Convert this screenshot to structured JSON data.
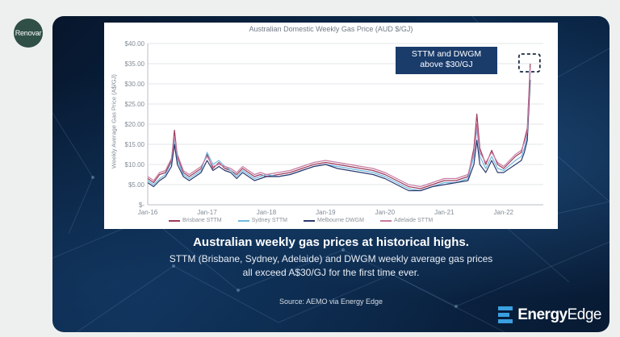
{
  "avatar": {
    "label": "Renovar"
  },
  "post": {
    "headline": "Australian weekly gas prices at historical highs.",
    "subtext_line1": "STTM (Brisbane, Sydney, Adelaide) and DWGM weekly average gas prices",
    "subtext_line2": "all exceed A$30/GJ for the first time ever.",
    "source": "Source: AEMO via Energy Edge",
    "logo": {
      "word_bold": "Energy",
      "word_light": "Edge",
      "color": "#3aa0e0"
    }
  },
  "callout": {
    "line1": "STTM and DWGM",
    "line2": "above $30/GJ"
  },
  "chart_data": {
    "type": "line",
    "title": "Australian Domestic Weekly Gas Price (AUD $/GJ)",
    "ylabel": "Weekly Average Gas Price (A$/GJ)",
    "ylim": [
      0,
      40
    ],
    "yticks": [
      "$-",
      "$5.00",
      "$10.00",
      "$15.00",
      "$20.00",
      "$25.00",
      "$30.00",
      "$35.00",
      "$40.00"
    ],
    "xlim": [
      2016.0,
      2022.67
    ],
    "xticks": [
      {
        "label": "Jan-16",
        "x": 2016
      },
      {
        "label": "Jan-17",
        "x": 2017
      },
      {
        "label": "Jan-18",
        "x": 2018
      },
      {
        "label": "Jan-19",
        "x": 2019
      },
      {
        "label": "Jan-20",
        "x": 2020
      },
      {
        "label": "Jan-21",
        "x": 2021
      },
      {
        "label": "Jan-22",
        "x": 2022
      }
    ],
    "grid": true,
    "legend": "bottom",
    "series": [
      {
        "name": "Brisbane STTM",
        "color": "#9b3a5a",
        "points": [
          [
            2016.0,
            6.5
          ],
          [
            2016.1,
            5.5
          ],
          [
            2016.2,
            7.5
          ],
          [
            2016.3,
            8.0
          ],
          [
            2016.4,
            11.0
          ],
          [
            2016.45,
            18.5
          ],
          [
            2016.5,
            12.0
          ],
          [
            2016.6,
            8.0
          ],
          [
            2016.7,
            7.0
          ],
          [
            2016.8,
            8.0
          ],
          [
            2016.9,
            9.0
          ],
          [
            2017.0,
            12.5
          ],
          [
            2017.1,
            9.0
          ],
          [
            2017.2,
            10.5
          ],
          [
            2017.3,
            9.0
          ],
          [
            2017.4,
            8.5
          ],
          [
            2017.5,
            7.5
          ],
          [
            2017.6,
            9.0
          ],
          [
            2017.7,
            8.0
          ],
          [
            2017.8,
            7.0
          ],
          [
            2017.9,
            7.5
          ],
          [
            2018.0,
            7.0
          ],
          [
            2018.2,
            7.5
          ],
          [
            2018.4,
            8.0
          ],
          [
            2018.6,
            9.0
          ],
          [
            2018.8,
            10.0
          ],
          [
            2019.0,
            10.5
          ],
          [
            2019.2,
            10.0
          ],
          [
            2019.4,
            9.5
          ],
          [
            2019.6,
            9.0
          ],
          [
            2019.8,
            8.5
          ],
          [
            2020.0,
            7.5
          ],
          [
            2020.2,
            6.0
          ],
          [
            2020.4,
            4.5
          ],
          [
            2020.6,
            4.0
          ],
          [
            2020.8,
            5.0
          ],
          [
            2021.0,
            6.0
          ],
          [
            2021.2,
            6.0
          ],
          [
            2021.4,
            7.0
          ],
          [
            2021.5,
            14.0
          ],
          [
            2021.55,
            22.5
          ],
          [
            2021.6,
            14.0
          ],
          [
            2021.7,
            10.0
          ],
          [
            2021.8,
            13.5
          ],
          [
            2021.9,
            10.0
          ],
          [
            2022.0,
            9.0
          ],
          [
            2022.2,
            12.0
          ],
          [
            2022.3,
            13.0
          ],
          [
            2022.35,
            16.0
          ],
          [
            2022.4,
            19.0
          ],
          [
            2022.45,
            35.0
          ]
        ]
      },
      {
        "name": "Sydney STTM",
        "color": "#6fb8e0",
        "points": [
          [
            2016.0,
            6.0
          ],
          [
            2016.1,
            5.0
          ],
          [
            2016.2,
            6.5
          ],
          [
            2016.3,
            7.5
          ],
          [
            2016.4,
            10.5
          ],
          [
            2016.45,
            16.5
          ],
          [
            2016.5,
            11.0
          ],
          [
            2016.6,
            7.5
          ],
          [
            2016.7,
            6.5
          ],
          [
            2016.8,
            7.5
          ],
          [
            2016.9,
            8.5
          ],
          [
            2017.0,
            13.0
          ],
          [
            2017.1,
            10.0
          ],
          [
            2017.2,
            11.0
          ],
          [
            2017.3,
            9.5
          ],
          [
            2017.4,
            8.5
          ],
          [
            2017.5,
            7.0
          ],
          [
            2017.6,
            8.5
          ],
          [
            2017.7,
            7.5
          ],
          [
            2017.8,
            6.5
          ],
          [
            2017.9,
            7.0
          ],
          [
            2018.0,
            7.5
          ],
          [
            2018.2,
            7.0
          ],
          [
            2018.4,
            7.5
          ],
          [
            2018.6,
            8.5
          ],
          [
            2018.8,
            9.5
          ],
          [
            2019.0,
            10.0
          ],
          [
            2019.2,
            9.5
          ],
          [
            2019.4,
            9.0
          ],
          [
            2019.6,
            8.5
          ],
          [
            2019.8,
            8.0
          ],
          [
            2020.0,
            7.0
          ],
          [
            2020.2,
            5.5
          ],
          [
            2020.4,
            4.0
          ],
          [
            2020.6,
            3.5
          ],
          [
            2020.8,
            4.5
          ],
          [
            2021.0,
            5.5
          ],
          [
            2021.2,
            5.5
          ],
          [
            2021.4,
            6.5
          ],
          [
            2021.5,
            12.0
          ],
          [
            2021.55,
            19.0
          ],
          [
            2021.6,
            12.0
          ],
          [
            2021.7,
            9.0
          ],
          [
            2021.8,
            12.0
          ],
          [
            2021.9,
            9.0
          ],
          [
            2022.0,
            8.5
          ],
          [
            2022.2,
            11.0
          ],
          [
            2022.3,
            12.0
          ],
          [
            2022.35,
            14.0
          ],
          [
            2022.4,
            17.0
          ],
          [
            2022.45,
            33.0
          ]
        ]
      },
      {
        "name": "Melbourne DWGM",
        "color": "#2a3a6e",
        "points": [
          [
            2016.0,
            5.5
          ],
          [
            2016.1,
            4.5
          ],
          [
            2016.2,
            6.0
          ],
          [
            2016.3,
            7.0
          ],
          [
            2016.4,
            9.5
          ],
          [
            2016.45,
            15.0
          ],
          [
            2016.5,
            10.0
          ],
          [
            2016.6,
            7.0
          ],
          [
            2016.7,
            6.0
          ],
          [
            2016.8,
            7.0
          ],
          [
            2016.9,
            8.0
          ],
          [
            2017.0,
            11.0
          ],
          [
            2017.1,
            8.5
          ],
          [
            2017.2,
            9.5
          ],
          [
            2017.3,
            8.5
          ],
          [
            2017.4,
            8.0
          ],
          [
            2017.5,
            6.5
          ],
          [
            2017.6,
            8.0
          ],
          [
            2017.7,
            7.0
          ],
          [
            2017.8,
            6.0
          ],
          [
            2017.9,
            6.5
          ],
          [
            2018.0,
            7.0
          ],
          [
            2018.2,
            7.0
          ],
          [
            2018.4,
            7.5
          ],
          [
            2018.6,
            8.5
          ],
          [
            2018.8,
            9.5
          ],
          [
            2019.0,
            10.0
          ],
          [
            2019.2,
            9.0
          ],
          [
            2019.4,
            8.5
          ],
          [
            2019.6,
            8.0
          ],
          [
            2019.8,
            7.5
          ],
          [
            2020.0,
            6.5
          ],
          [
            2020.2,
            5.0
          ],
          [
            2020.4,
            3.5
          ],
          [
            2020.6,
            3.5
          ],
          [
            2020.8,
            4.5
          ],
          [
            2021.0,
            5.0
          ],
          [
            2021.2,
            5.5
          ],
          [
            2021.4,
            6.0
          ],
          [
            2021.5,
            10.0
          ],
          [
            2021.55,
            16.0
          ],
          [
            2021.6,
            10.0
          ],
          [
            2021.7,
            8.0
          ],
          [
            2021.8,
            11.0
          ],
          [
            2021.9,
            8.0
          ],
          [
            2022.0,
            8.0
          ],
          [
            2022.2,
            10.0
          ],
          [
            2022.3,
            11.0
          ],
          [
            2022.35,
            13.0
          ],
          [
            2022.4,
            16.0
          ],
          [
            2022.45,
            31.0
          ]
        ]
      },
      {
        "name": "Adelaide STTM",
        "color": "#c77aa2",
        "points": [
          [
            2016.0,
            7.0
          ],
          [
            2016.1,
            6.0
          ],
          [
            2016.2,
            8.0
          ],
          [
            2016.3,
            8.5
          ],
          [
            2016.4,
            11.5
          ],
          [
            2016.45,
            17.0
          ],
          [
            2016.5,
            12.5
          ],
          [
            2016.6,
            8.5
          ],
          [
            2016.7,
            7.5
          ],
          [
            2016.8,
            8.5
          ],
          [
            2016.9,
            9.5
          ],
          [
            2017.0,
            12.0
          ],
          [
            2017.1,
            9.5
          ],
          [
            2017.2,
            10.0
          ],
          [
            2017.3,
            9.5
          ],
          [
            2017.4,
            9.0
          ],
          [
            2017.5,
            8.0
          ],
          [
            2017.6,
            9.5
          ],
          [
            2017.7,
            8.5
          ],
          [
            2017.8,
            7.5
          ],
          [
            2017.9,
            8.0
          ],
          [
            2018.0,
            7.5
          ],
          [
            2018.2,
            8.0
          ],
          [
            2018.4,
            8.5
          ],
          [
            2018.6,
            9.5
          ],
          [
            2018.8,
            10.5
          ],
          [
            2019.0,
            11.0
          ],
          [
            2019.2,
            10.5
          ],
          [
            2019.4,
            10.0
          ],
          [
            2019.6,
            9.5
          ],
          [
            2019.8,
            9.0
          ],
          [
            2020.0,
            8.0
          ],
          [
            2020.2,
            6.5
          ],
          [
            2020.4,
            5.0
          ],
          [
            2020.6,
            4.5
          ],
          [
            2020.8,
            5.5
          ],
          [
            2021.0,
            6.5
          ],
          [
            2021.2,
            6.5
          ],
          [
            2021.4,
            7.5
          ],
          [
            2021.5,
            13.0
          ],
          [
            2021.55,
            20.0
          ],
          [
            2021.6,
            13.0
          ],
          [
            2021.7,
            10.5
          ],
          [
            2021.8,
            13.0
          ],
          [
            2021.9,
            10.5
          ],
          [
            2022.0,
            9.5
          ],
          [
            2022.2,
            12.5
          ],
          [
            2022.3,
            13.5
          ],
          [
            2022.35,
            15.5
          ],
          [
            2022.4,
            18.0
          ],
          [
            2022.45,
            34.0
          ]
        ]
      }
    ]
  }
}
